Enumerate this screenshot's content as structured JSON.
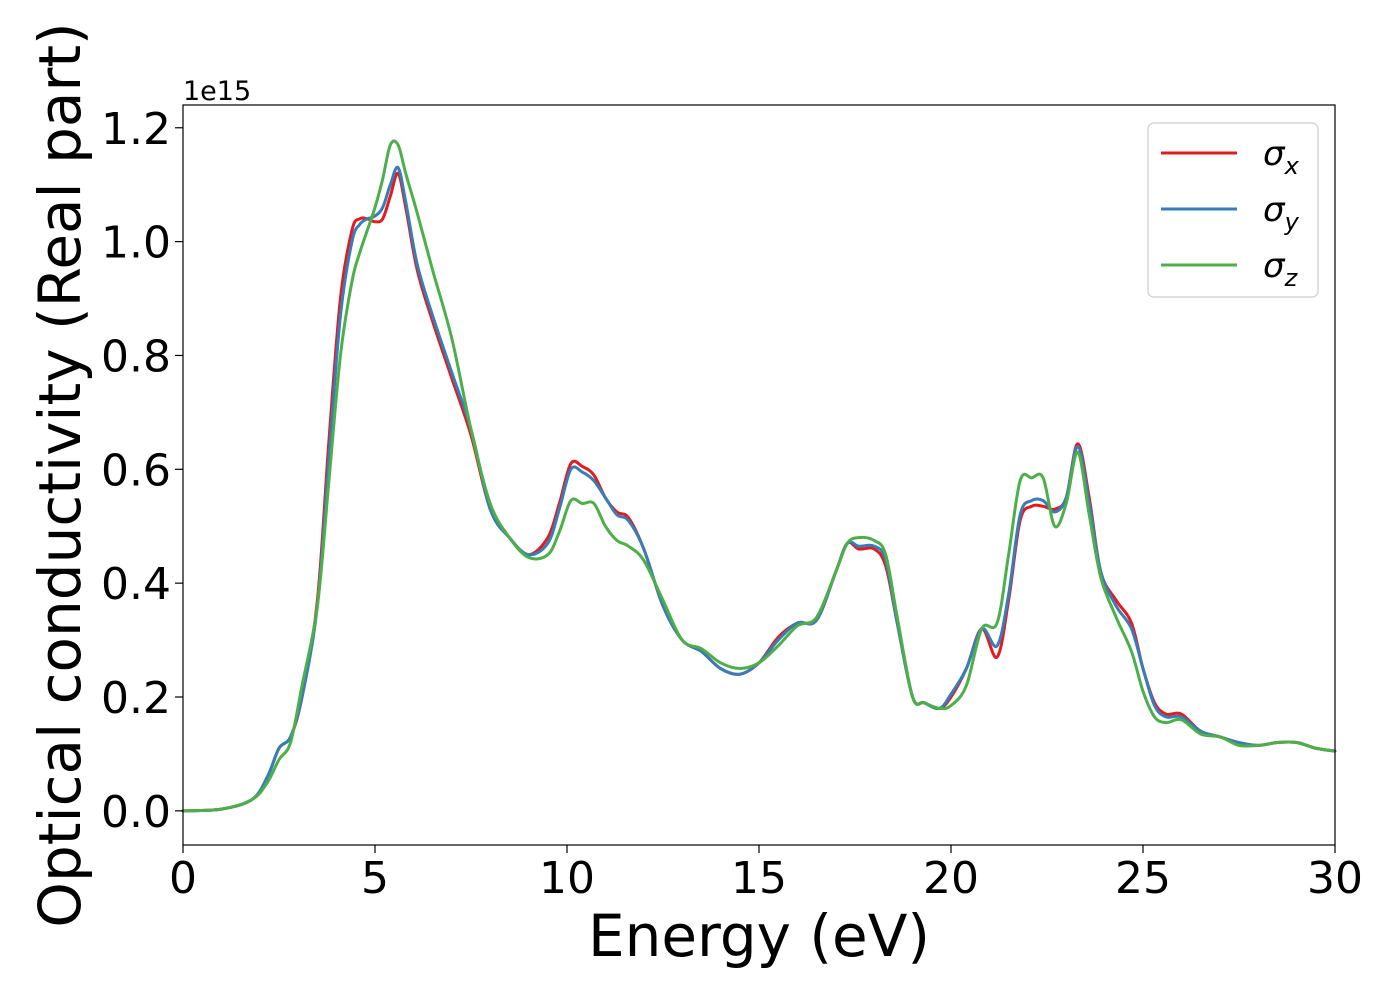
{
  "chart_data": {
    "type": "line",
    "title": "",
    "xlabel": "Energy (eV)",
    "ylabel": "Optical conductivity (Real part)",
    "y_offset_label": "1e15",
    "y_scale": 1000000000000000.0,
    "xlim": [
      0,
      30
    ],
    "ylim": [
      -0.06,
      1.24
    ],
    "x_ticks": [
      0,
      5,
      10,
      15,
      20,
      25,
      30
    ],
    "x_tick_labels": [
      "0",
      "5",
      "10",
      "15",
      "20",
      "25",
      "30"
    ],
    "y_ticks": [
      0.0,
      0.2,
      0.4,
      0.6,
      0.8,
      1.0,
      1.2
    ],
    "y_tick_labels": [
      "0.0",
      "0.2",
      "0.4",
      "0.6",
      "0.8",
      "1.0",
      "1.2"
    ],
    "grid": false,
    "legend_position": "top-right",
    "series": [
      {
        "name": "σx",
        "symbol": "σ",
        "subscript": "x",
        "color": "#e41a1c",
        "x": [
          0,
          1,
          1.8,
          2.2,
          2.5,
          2.8,
          3.1,
          3.5,
          3.8,
          4.1,
          4.4,
          4.6,
          4.8,
          5.0,
          5.2,
          5.4,
          5.6,
          5.8,
          6.1,
          6.5,
          7.0,
          7.5,
          8.0,
          8.5,
          9.0,
          9.5,
          9.8,
          10.1,
          10.4,
          10.7,
          11.0,
          11.3,
          11.6,
          12.0,
          12.5,
          13.0,
          13.5,
          14.0,
          14.5,
          15.0,
          15.5,
          16.0,
          16.5,
          17.0,
          17.3,
          17.6,
          18.0,
          18.3,
          18.6,
          19.0,
          19.3,
          19.7,
          20.0,
          20.4,
          20.8,
          21.2,
          21.5,
          21.8,
          22.1,
          22.4,
          22.7,
          23.0,
          23.3,
          23.6,
          23.9,
          24.3,
          24.7,
          25.0,
          25.3,
          25.6,
          26.0,
          26.5,
          27.0,
          27.5,
          28.0,
          28.5,
          29.0,
          29.5,
          30.0
        ],
        "y": [
          0.0,
          0.003,
          0.02,
          0.06,
          0.11,
          0.13,
          0.2,
          0.37,
          0.65,
          0.9,
          1.02,
          1.04,
          1.04,
          1.035,
          1.04,
          1.08,
          1.12,
          1.06,
          0.95,
          0.86,
          0.76,
          0.66,
          0.53,
          0.48,
          0.45,
          0.48,
          0.54,
          0.61,
          0.605,
          0.59,
          0.55,
          0.525,
          0.515,
          0.46,
          0.36,
          0.3,
          0.28,
          0.25,
          0.24,
          0.26,
          0.305,
          0.33,
          0.335,
          0.42,
          0.47,
          0.46,
          0.46,
          0.43,
          0.33,
          0.2,
          0.19,
          0.18,
          0.2,
          0.25,
          0.32,
          0.27,
          0.37,
          0.51,
          0.535,
          0.535,
          0.53,
          0.55,
          0.645,
          0.55,
          0.42,
          0.37,
          0.33,
          0.25,
          0.19,
          0.17,
          0.17,
          0.14,
          0.13,
          0.12,
          0.115,
          0.12,
          0.12,
          0.11,
          0.105
        ]
      },
      {
        "name": "σy",
        "symbol": "σ",
        "subscript": "y",
        "color": "#377eb8",
        "x": [
          0,
          1,
          1.8,
          2.2,
          2.5,
          2.8,
          3.1,
          3.5,
          3.8,
          4.1,
          4.4,
          4.6,
          4.8,
          5.0,
          5.2,
          5.4,
          5.6,
          5.8,
          6.1,
          6.5,
          7.0,
          7.5,
          8.0,
          8.5,
          9.0,
          9.5,
          9.8,
          10.1,
          10.4,
          10.7,
          11.0,
          11.3,
          11.6,
          12.0,
          12.5,
          13.0,
          13.5,
          14.0,
          14.5,
          15.0,
          15.5,
          16.0,
          16.5,
          17.0,
          17.3,
          17.6,
          18.0,
          18.3,
          18.6,
          19.0,
          19.3,
          19.7,
          20.0,
          20.4,
          20.8,
          21.2,
          21.5,
          21.8,
          22.1,
          22.4,
          22.7,
          23.0,
          23.3,
          23.6,
          23.9,
          24.3,
          24.7,
          25.0,
          25.3,
          25.6,
          26.0,
          26.5,
          27.0,
          27.5,
          28.0,
          28.5,
          29.0,
          29.5,
          30.0
        ],
        "y": [
          0.0,
          0.003,
          0.02,
          0.06,
          0.11,
          0.13,
          0.2,
          0.36,
          0.62,
          0.87,
          1.0,
          1.03,
          1.04,
          1.045,
          1.06,
          1.1,
          1.13,
          1.07,
          0.96,
          0.87,
          0.77,
          0.67,
          0.53,
          0.48,
          0.45,
          0.47,
          0.53,
          0.6,
          0.595,
          0.58,
          0.55,
          0.52,
          0.51,
          0.46,
          0.36,
          0.3,
          0.28,
          0.25,
          0.24,
          0.26,
          0.3,
          0.33,
          0.335,
          0.42,
          0.47,
          0.465,
          0.465,
          0.44,
          0.33,
          0.2,
          0.19,
          0.18,
          0.205,
          0.25,
          0.32,
          0.29,
          0.38,
          0.52,
          0.545,
          0.545,
          0.525,
          0.55,
          0.64,
          0.54,
          0.42,
          0.36,
          0.32,
          0.25,
          0.185,
          0.165,
          0.165,
          0.14,
          0.13,
          0.12,
          0.115,
          0.12,
          0.12,
          0.11,
          0.105
        ]
      },
      {
        "name": "σz",
        "symbol": "σ",
        "subscript": "z",
        "color": "#4daf4a",
        "x": [
          0,
          1,
          1.8,
          2.2,
          2.5,
          2.8,
          3.1,
          3.5,
          3.8,
          4.1,
          4.4,
          4.6,
          4.8,
          5.0,
          5.2,
          5.4,
          5.6,
          5.8,
          6.1,
          6.5,
          7.0,
          7.5,
          8.0,
          8.5,
          9.0,
          9.5,
          9.8,
          10.1,
          10.4,
          10.7,
          11.0,
          11.3,
          11.6,
          12.0,
          12.5,
          13.0,
          13.5,
          14.0,
          14.5,
          15.0,
          15.5,
          16.0,
          16.5,
          17.0,
          17.3,
          17.6,
          18.0,
          18.3,
          18.6,
          19.0,
          19.3,
          19.7,
          20.0,
          20.4,
          20.8,
          21.2,
          21.5,
          21.8,
          22.1,
          22.4,
          22.7,
          23.0,
          23.3,
          23.6,
          23.9,
          24.3,
          24.7,
          25.0,
          25.3,
          25.6,
          26.0,
          26.5,
          27.0,
          27.5,
          28.0,
          28.5,
          29.0,
          29.5,
          30.0
        ],
        "y": [
          0.0,
          0.003,
          0.02,
          0.05,
          0.09,
          0.12,
          0.22,
          0.36,
          0.58,
          0.8,
          0.93,
          0.98,
          1.02,
          1.06,
          1.11,
          1.17,
          1.17,
          1.12,
          1.05,
          0.95,
          0.83,
          0.67,
          0.54,
          0.48,
          0.445,
          0.45,
          0.49,
          0.545,
          0.54,
          0.54,
          0.5,
          0.475,
          0.465,
          0.44,
          0.37,
          0.3,
          0.285,
          0.26,
          0.25,
          0.26,
          0.29,
          0.325,
          0.34,
          0.42,
          0.47,
          0.48,
          0.475,
          0.45,
          0.34,
          0.2,
          0.19,
          0.18,
          0.185,
          0.22,
          0.32,
          0.33,
          0.45,
          0.58,
          0.585,
          0.585,
          0.5,
          0.54,
          0.63,
          0.52,
          0.41,
          0.34,
          0.28,
          0.21,
          0.165,
          0.155,
          0.16,
          0.135,
          0.13,
          0.115,
          0.115,
          0.12,
          0.12,
          0.11,
          0.105
        ]
      }
    ]
  }
}
